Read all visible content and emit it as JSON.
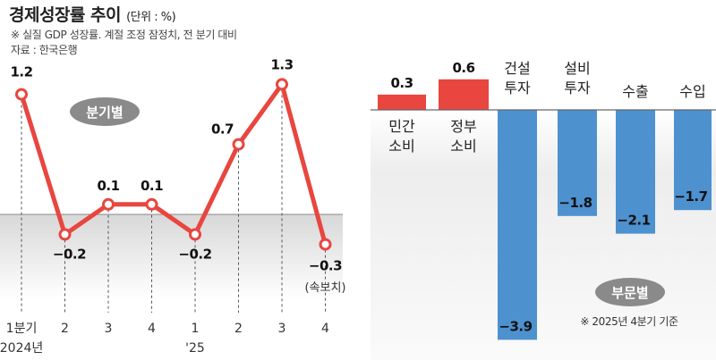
{
  "title": {
    "main": "경제성장률 추이",
    "unit": "(단위 : %)",
    "note": "※ 실질 GDP 성장률. 계절 조정 잠정치, 전 분기 대비",
    "source": "자료 : 한국은행"
  },
  "chart_data": [
    {
      "type": "line",
      "badge": "분기별",
      "categories": [
        "1분기",
        "2",
        "3",
        "4",
        "1",
        "2",
        "3",
        "4"
      ],
      "year_labels": [
        "2024년",
        "",
        "",
        "",
        "'25",
        "",
        "",
        ""
      ],
      "values": [
        1.2,
        -0.2,
        0.1,
        0.1,
        -0.2,
        0.7,
        1.3,
        -0.3
      ],
      "value_labels": [
        "1.2",
        "−0.2",
        "0.1",
        "0.1",
        "−0.2",
        "0.7",
        "1.3",
        "−0.3"
      ],
      "annotation": "(속보치)",
      "color": "#e8463f",
      "ylim": [
        -0.6,
        1.5
      ]
    },
    {
      "type": "bar",
      "badge": "부문별",
      "categories": [
        "민간\n소비",
        "정부\n소비",
        "건설\n투자",
        "설비\n투자",
        "수출",
        "수입"
      ],
      "values": [
        0.3,
        0.6,
        -3.9,
        -1.8,
        -2.1,
        -1.7
      ],
      "value_labels": [
        "0.3",
        "0.6",
        "−3.9",
        "−1.8",
        "−2.1",
        "−1.7"
      ],
      "positive_color": "#e8463f",
      "negative_color": "#4e91cf",
      "footnote": "※ 2025년 4분기 기준"
    }
  ]
}
